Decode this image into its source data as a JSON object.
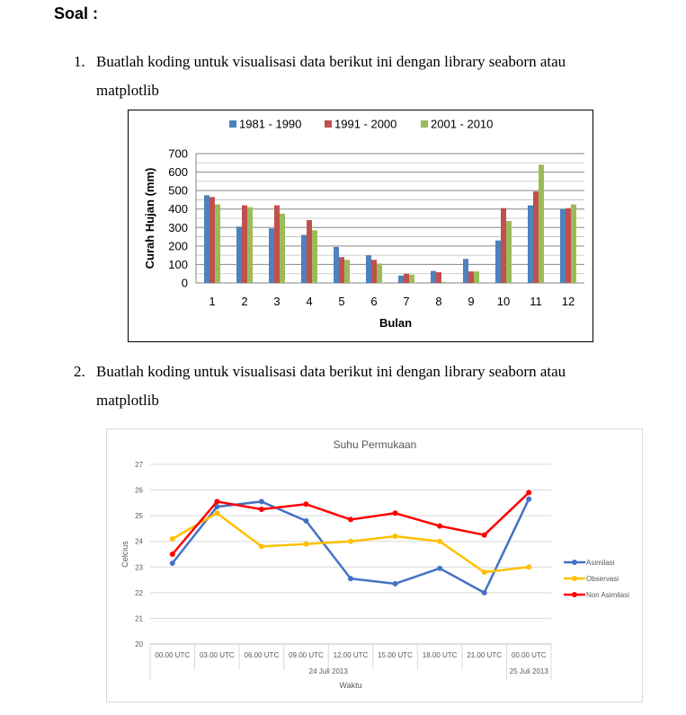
{
  "heading": "Soal :",
  "questions": [
    {
      "number": "1.",
      "line1": "Buatlah koding untuk visualisasi data berikut ini dengan library seaborn atau",
      "line2": "matplotlib"
    },
    {
      "number": "2.",
      "line1": "Buatlah koding untuk visualisasi data berikut ini dengan library seaborn atau",
      "line2": "matplotlib"
    }
  ],
  "chart_data": [
    {
      "type": "bar",
      "title": "",
      "xlabel": "Bulan",
      "ylabel": "Curah Hujan (mm)",
      "ylim": [
        0,
        700
      ],
      "yticks": [
        0,
        100,
        200,
        300,
        400,
        500,
        600,
        700
      ],
      "grid": true,
      "legend_position": "top",
      "categories": [
        "1",
        "2",
        "3",
        "4",
        "5",
        "6",
        "7",
        "8",
        "9",
        "10",
        "11",
        "12"
      ],
      "series": [
        {
          "name": "1981 - 1990",
          "color": "#4f81bd",
          "values": [
            475,
            305,
            295,
            260,
            195,
            150,
            40,
            65,
            130,
            230,
            420,
            400
          ]
        },
        {
          "name": "1991 - 2000",
          "color": "#c0504d",
          "values": [
            465,
            420,
            420,
            340,
            140,
            125,
            50,
            58,
            62,
            405,
            495,
            405
          ]
        },
        {
          "name": "2001 - 2010",
          "color": "#9bbb59",
          "values": [
            425,
            410,
            375,
            285,
            125,
            105,
            45,
            5,
            62,
            335,
            640,
            425
          ]
        }
      ]
    },
    {
      "type": "line",
      "title": "Suhu Permukaan",
      "xlabel": "Waktu",
      "ylabel": "Celcius",
      "ylim": [
        20,
        27
      ],
      "yticks": [
        20,
        21,
        22,
        23,
        24,
        25,
        26,
        27
      ],
      "grid": true,
      "legend_position": "right",
      "categories": [
        "00.00 UTC",
        "03.00 UTC",
        "06.00 UTC",
        "09.00 UTC",
        "12.00 UTC",
        "15.00 UTC",
        "18.00 UTC",
        "21.00 UTC",
        "00.00 UTC"
      ],
      "groups": [
        {
          "label": "24 Juli 2013",
          "count": 8
        },
        {
          "label": "25 Juli 2013",
          "count": 1
        }
      ],
      "series": [
        {
          "name": "Asimilasi",
          "color": "#4472c4",
          "values": [
            23.15,
            25.35,
            25.55,
            24.8,
            22.55,
            22.35,
            22.95,
            22.0,
            25.65
          ]
        },
        {
          "name": "Observasi",
          "color": "#ffc000",
          "values": [
            24.1,
            25.1,
            23.8,
            23.9,
            24.0,
            24.2,
            24.0,
            22.8,
            23.0
          ]
        },
        {
          "name": "Non Asimilasi",
          "color": "#ff0000",
          "values": [
            23.5,
            25.55,
            25.25,
            25.45,
            24.85,
            25.1,
            24.6,
            24.25,
            25.9
          ]
        }
      ]
    }
  ]
}
